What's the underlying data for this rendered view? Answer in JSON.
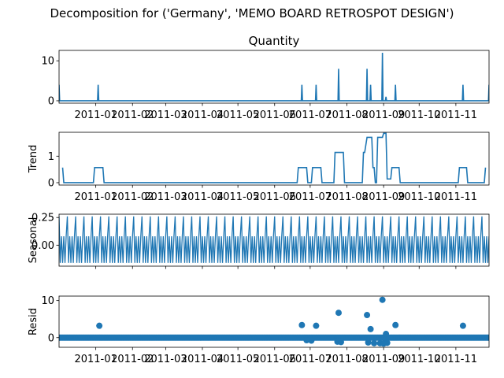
{
  "figure": {
    "suptitle": "Decomposition for ('Germany', 'MEMO BOARD RETROSPOT  DESIGN')"
  },
  "chart_data": [
    {
      "type": "line",
      "panel": "observed",
      "title": "Quantity",
      "ylabel": "",
      "xlim": [
        "2010-12-01",
        "2011-11-29"
      ],
      "ylim": [
        -0.6,
        12.6
      ],
      "yticks": [
        0,
        10
      ],
      "xticks": [
        "2011-01-01",
        "2011-02-01",
        "2011-03-01",
        "2011-04-01",
        "2011-05-01",
        "2011-06-01",
        "2011-07-01",
        "2011-08-01",
        "2011-09-01",
        "2011-10-01",
        "2011-11-01"
      ],
      "xticklabels": [
        "2011-01",
        "2011-02",
        "2011-03",
        "2011-04",
        "2011-05",
        "2011-06",
        "2011-07",
        "2011-08",
        "2011-09",
        "2011-10",
        "2011-11"
      ],
      "show_xticklabels": true,
      "color": "#1f77b4",
      "baseline": 0,
      "spikes": [
        {
          "date": "2010-12-01",
          "value": 4
        },
        {
          "date": "2011-01-03",
          "value": 4
        },
        {
          "date": "2011-06-24",
          "value": 4
        },
        {
          "date": "2011-07-06",
          "value": 4
        },
        {
          "date": "2011-07-25",
          "value": 8
        },
        {
          "date": "2011-08-18",
          "value": 8
        },
        {
          "date": "2011-08-21",
          "value": 4
        },
        {
          "date": "2011-08-31",
          "value": 12
        },
        {
          "date": "2011-09-03",
          "value": 1
        },
        {
          "date": "2011-09-11",
          "value": 4
        },
        {
          "date": "2011-11-07",
          "value": 4
        },
        {
          "date": "2011-11-29",
          "value": 4
        }
      ]
    },
    {
      "type": "line",
      "panel": "trend",
      "title": "",
      "ylabel": "Trend",
      "xlim": [
        "2010-12-01",
        "2011-11-29"
      ],
      "ylim": [
        -0.09,
        1.9
      ],
      "yticks": [
        0,
        1
      ],
      "xticks": [
        "2011-01-01",
        "2011-02-01",
        "2011-03-01",
        "2011-04-01",
        "2011-05-01",
        "2011-06-01",
        "2011-07-01",
        "2011-08-01",
        "2011-09-01",
        "2011-10-01",
        "2011-11-01"
      ],
      "xticklabels": [
        "2011-01",
        "2011-02",
        "2011-03",
        "2011-04",
        "2011-05",
        "2011-06",
        "2011-07",
        "2011-08",
        "2011-09",
        "2011-10",
        "2011-11"
      ],
      "show_xticklabels": true,
      "color": "#1f77b4",
      "points": [
        [
          "2010-12-04",
          0.57
        ],
        [
          "2010-12-05",
          0.0
        ],
        [
          "2010-12-30",
          0.0
        ],
        [
          "2010-12-31",
          0.57
        ],
        [
          "2011-01-07",
          0.57
        ],
        [
          "2011-01-08",
          0.0
        ],
        [
          "2011-06-20",
          0.0
        ],
        [
          "2011-06-21",
          0.57
        ],
        [
          "2011-06-28",
          0.57
        ],
        [
          "2011-06-29",
          0.0
        ],
        [
          "2011-07-02",
          0.0
        ],
        [
          "2011-07-03",
          0.57
        ],
        [
          "2011-07-10",
          0.57
        ],
        [
          "2011-07-11",
          0.0
        ],
        [
          "2011-07-21",
          0.0
        ],
        [
          "2011-07-22",
          1.14
        ],
        [
          "2011-07-29",
          1.14
        ],
        [
          "2011-07-30",
          0.0
        ],
        [
          "2011-08-14",
          0.0
        ],
        [
          "2011-08-15",
          1.14
        ],
        [
          "2011-08-16",
          1.14
        ],
        [
          "2011-08-18",
          1.71
        ],
        [
          "2011-08-22",
          1.71
        ],
        [
          "2011-08-23",
          0.57
        ],
        [
          "2011-08-24",
          0.57
        ],
        [
          "2011-08-25",
          0.0
        ],
        [
          "2011-08-26",
          0.0
        ],
        [
          "2011-08-27",
          1.71
        ],
        [
          "2011-08-31",
          1.71
        ],
        [
          "2011-09-01",
          1.86
        ],
        [
          "2011-09-03",
          1.86
        ],
        [
          "2011-09-04",
          0.14
        ],
        [
          "2011-09-07",
          0.14
        ],
        [
          "2011-09-08",
          0.57
        ],
        [
          "2011-09-14",
          0.57
        ],
        [
          "2011-09-15",
          0.0
        ],
        [
          "2011-11-03",
          0.0
        ],
        [
          "2011-11-04",
          0.57
        ],
        [
          "2011-11-10",
          0.57
        ],
        [
          "2011-11-11",
          0.0
        ],
        [
          "2011-11-25",
          0.0
        ],
        [
          "2011-11-26",
          0.57
        ]
      ]
    },
    {
      "type": "line",
      "panel": "seasonal",
      "title": "",
      "ylabel": "Seasonal",
      "xlim": [
        "2010-12-01",
        "2011-11-29"
      ],
      "ylim": [
        -0.19,
        0.28
      ],
      "yticks": [
        0.25,
        0.0
      ],
      "yticklabels": [
        "0.25",
        "0.00"
      ],
      "xticks": [
        "2011-01-01",
        "2011-02-01",
        "2011-03-01",
        "2011-04-01",
        "2011-05-01",
        "2011-06-01",
        "2011-07-01",
        "2011-08-01",
        "2011-09-01",
        "2011-10-01",
        "2011-11-01"
      ],
      "xticklabels": [
        "2011-01",
        "2011-02",
        "2011-03",
        "2011-04",
        "2011-05",
        "2011-06",
        "2011-07",
        "2011-08",
        "2011-09",
        "2011-10",
        "2011-11"
      ],
      "show_xticklabels": false,
      "color": "#1f77b4",
      "period_days": 7,
      "weekly_pattern": [
        0.26,
        -0.16,
        0.08,
        -0.16,
        0.08,
        -0.16,
        0.08
      ]
    },
    {
      "type": "scatter",
      "panel": "resid",
      "title": "",
      "ylabel": "Resid",
      "xlim": [
        "2010-12-01",
        "2011-11-29"
      ],
      "ylim": [
        -2.6,
        11.2
      ],
      "yticks": [
        0,
        10
      ],
      "xticks": [
        "2011-01-01",
        "2011-02-01",
        "2011-03-01",
        "2011-04-01",
        "2011-05-01",
        "2011-06-01",
        "2011-07-01",
        "2011-08-01",
        "2011-09-01",
        "2011-10-01",
        "2011-11-01"
      ],
      "xticklabels": [
        "2011-01",
        "2011-02",
        "2011-03",
        "2011-04",
        "2011-05",
        "2011-06",
        "2011-07",
        "2011-08",
        "2011-09",
        "2011-10",
        "2011-11"
      ],
      "show_xticklabels": true,
      "color": "#1f77b4",
      "baseline_start": "2010-12-01",
      "baseline_end": "2011-11-29",
      "baseline_value": 0,
      "points": [
        [
          "2011-01-04",
          3.2
        ],
        [
          "2011-06-24",
          3.4
        ],
        [
          "2011-07-06",
          3.2
        ],
        [
          "2011-07-25",
          6.7
        ],
        [
          "2011-08-18",
          6.1
        ],
        [
          "2011-08-21",
          2.3
        ],
        [
          "2011-08-31",
          10.2
        ],
        [
          "2011-09-11",
          3.4
        ],
        [
          "2011-11-07",
          3.2
        ],
        [
          "2011-07-24",
          -1.1
        ],
        [
          "2011-07-27",
          -1.2
        ],
        [
          "2011-08-19",
          -1.3
        ],
        [
          "2011-08-24",
          -1.5
        ],
        [
          "2011-08-29",
          -1.5
        ],
        [
          "2011-09-01",
          -1.6
        ],
        [
          "2011-09-04",
          -1.4
        ],
        [
          "2011-09-03",
          1.0
        ],
        [
          "2011-07-02",
          -0.8
        ],
        [
          "2011-06-28",
          -0.7
        ]
      ]
    }
  ]
}
